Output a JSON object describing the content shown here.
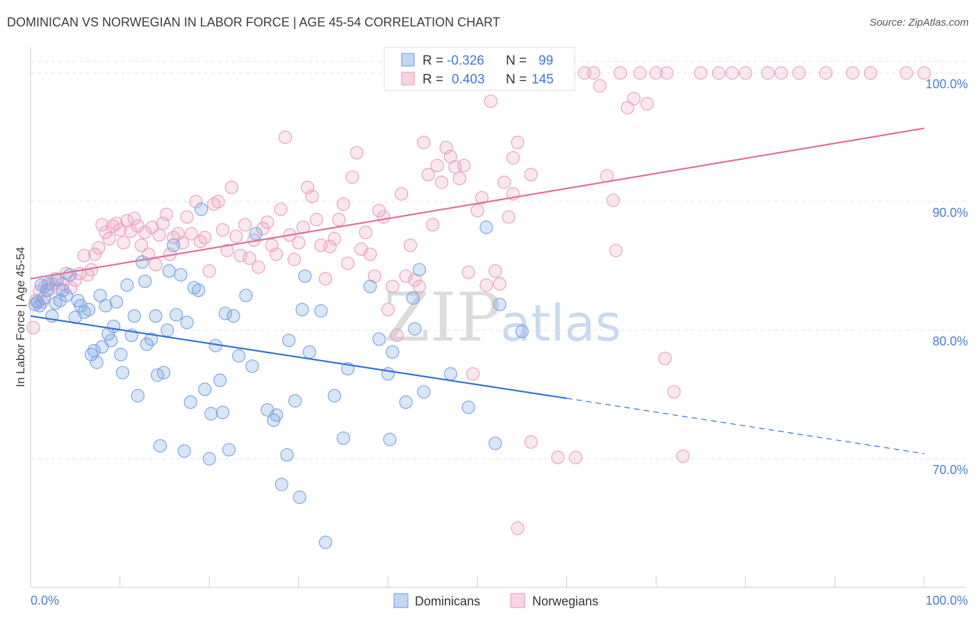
{
  "title": "DOMINICAN VS NORWEGIAN IN LABOR FORCE | AGE 45-54 CORRELATION CHART",
  "source": "Source: ZipAtlas.com",
  "watermark": {
    "zip": "ZIP",
    "atlas": "atlas"
  },
  "colors": {
    "dominicans_fill": "rgba(120,165,230,0.28)",
    "dominicans_stroke": "#7aa6e3",
    "dominicans_line": "#2f72d6",
    "norwegians_fill": "rgba(240,160,190,0.25)",
    "norwegians_stroke": "#eba1bc",
    "norwegians_line": "#e26d98",
    "grid": "#e2e2e2",
    "axis_text": "#4a7fcf"
  },
  "legend_top": {
    "rows": [
      {
        "r_label": "R =",
        "r_value": "-0.326",
        "n_label": "N =",
        "n_value": "99"
      },
      {
        "r_label": "R =",
        "r_value": "0.403",
        "n_label": "N =",
        "n_value": "145"
      }
    ]
  },
  "legend_bottom": [
    "Dominicans",
    "Norwegians"
  ],
  "chart_data": {
    "type": "scatter",
    "title": "DOMINICAN VS NORWEGIAN IN LABOR FORCE | AGE 45-54 CORRELATION CHART",
    "xlabel": "",
    "ylabel": "In Labor Force | Age 45-54",
    "xlim": [
      0,
      100
    ],
    "ylim": [
      60,
      102
    ],
    "x_tick_labels": [
      "0.0%",
      "100.0%"
    ],
    "y_ticks": [
      70,
      80,
      90,
      100
    ],
    "y_tick_labels": [
      "70.0%",
      "80.0%",
      "90.0%",
      "100.0%"
    ],
    "grid": true,
    "legend_position": "top-center",
    "series": [
      {
        "name": "Dominicans",
        "r": -0.326,
        "n": 99,
        "trend": {
          "x0": 0,
          "y0": 81.1,
          "x1": 60,
          "y1": 74.7,
          "dashed_to_x": 100,
          "dashed_to_y": 70.4
        },
        "points": [
          [
            0.5,
            82.0
          ],
          [
            0.8,
            82.2
          ],
          [
            1.0,
            81.9
          ],
          [
            1.2,
            83.5
          ],
          [
            1.5,
            82.5
          ],
          [
            1.8,
            83.1
          ],
          [
            2.0,
            83.6
          ],
          [
            2.4,
            81.1
          ],
          [
            2.8,
            82.1
          ],
          [
            3.0,
            83.9
          ],
          [
            3.3,
            82.3
          ],
          [
            3.6,
            83.1
          ],
          [
            4.0,
            82.7
          ],
          [
            4.4,
            84.3
          ],
          [
            5.0,
            81.0
          ],
          [
            5.3,
            82.3
          ],
          [
            5.6,
            81.9
          ],
          [
            6.0,
            81.4
          ],
          [
            6.5,
            81.6
          ],
          [
            6.8,
            78.1
          ],
          [
            7.1,
            78.4
          ],
          [
            7.4,
            77.5
          ],
          [
            7.8,
            82.7
          ],
          [
            8.0,
            78.7
          ],
          [
            8.4,
            81.9
          ],
          [
            8.7,
            79.7
          ],
          [
            9.0,
            79.2
          ],
          [
            9.3,
            80.3
          ],
          [
            9.6,
            82.2
          ],
          [
            10.1,
            78.1
          ],
          [
            10.3,
            76.7
          ],
          [
            10.8,
            83.5
          ],
          [
            11.3,
            79.6
          ],
          [
            11.6,
            81.1
          ],
          [
            12.0,
            74.9
          ],
          [
            12.5,
            85.3
          ],
          [
            12.8,
            83.8
          ],
          [
            13.0,
            78.9
          ],
          [
            13.5,
            79.3
          ],
          [
            14.0,
            81.1
          ],
          [
            14.2,
            76.5
          ],
          [
            14.5,
            71.0
          ],
          [
            14.9,
            76.7
          ],
          [
            15.3,
            80.0
          ],
          [
            15.5,
            84.6
          ],
          [
            16.0,
            86.6
          ],
          [
            16.3,
            81.2
          ],
          [
            16.8,
            84.3
          ],
          [
            17.2,
            70.6
          ],
          [
            17.5,
            80.6
          ],
          [
            17.9,
            74.4
          ],
          [
            18.3,
            83.3
          ],
          [
            18.8,
            83.1
          ],
          [
            19.1,
            89.4
          ],
          [
            19.5,
            75.4
          ],
          [
            20.0,
            70.0
          ],
          [
            20.2,
            73.5
          ],
          [
            20.7,
            78.8
          ],
          [
            21.2,
            76.1
          ],
          [
            21.5,
            73.6
          ],
          [
            21.8,
            81.3
          ],
          [
            22.2,
            70.7
          ],
          [
            22.7,
            81.1
          ],
          [
            23.3,
            78.0
          ],
          [
            24.1,
            82.7
          ],
          [
            24.8,
            77.2
          ],
          [
            25.2,
            87.5
          ],
          [
            26.5,
            73.8
          ],
          [
            27.2,
            73.0
          ],
          [
            27.5,
            73.4
          ],
          [
            28.1,
            68.0
          ],
          [
            28.7,
            70.3
          ],
          [
            28.9,
            79.2
          ],
          [
            29.6,
            74.5
          ],
          [
            30.1,
            67.0
          ],
          [
            30.4,
            81.6
          ],
          [
            30.7,
            84.2
          ],
          [
            31.2,
            78.3
          ],
          [
            32.5,
            81.5
          ],
          [
            33.0,
            63.5
          ],
          [
            34.0,
            74.9
          ],
          [
            35.0,
            71.6
          ],
          [
            35.5,
            77.0
          ],
          [
            38.0,
            83.4
          ],
          [
            39.0,
            79.3
          ],
          [
            40.0,
            76.6
          ],
          [
            40.2,
            71.5
          ],
          [
            40.5,
            78.3
          ],
          [
            42.0,
            74.4
          ],
          [
            43.0,
            80.1
          ],
          [
            43.5,
            84.7
          ],
          [
            44.0,
            75.2
          ],
          [
            47.0,
            76.6
          ],
          [
            49.0,
            74.0
          ],
          [
            51.0,
            88.0
          ],
          [
            52.0,
            71.2
          ],
          [
            52.5,
            82.0
          ],
          [
            55.0,
            79.9
          ],
          [
            42.8,
            82.5
          ]
        ]
      },
      {
        "name": "Norwegians",
        "r": 0.403,
        "n": 145,
        "trend": {
          "x0": 0,
          "y0": 84.0,
          "x1": 100,
          "y1": 95.7
        },
        "points": [
          [
            0.3,
            80.2
          ],
          [
            0.6,
            82.3
          ],
          [
            1.0,
            83.0
          ],
          [
            1.3,
            82.2
          ],
          [
            1.6,
            83.4
          ],
          [
            2.0,
            83.1
          ],
          [
            2.4,
            83.6
          ],
          [
            2.8,
            84.0
          ],
          [
            3.2,
            83.2
          ],
          [
            3.6,
            83.6
          ],
          [
            4.0,
            84.4
          ],
          [
            4.5,
            83.3
          ],
          [
            5.0,
            83.9
          ],
          [
            5.5,
            84.4
          ],
          [
            6.0,
            85.8
          ],
          [
            6.4,
            84.3
          ],
          [
            6.8,
            84.7
          ],
          [
            7.2,
            85.9
          ],
          [
            7.6,
            86.4
          ],
          [
            8.0,
            88.2
          ],
          [
            8.4,
            87.6
          ],
          [
            8.8,
            87.1
          ],
          [
            9.2,
            88.1
          ],
          [
            9.6,
            88.3
          ],
          [
            10.0,
            87.8
          ],
          [
            10.4,
            86.8
          ],
          [
            10.8,
            88.5
          ],
          [
            11.2,
            87.7
          ],
          [
            11.6,
            88.7
          ],
          [
            12.0,
            88.1
          ],
          [
            12.4,
            86.6
          ],
          [
            12.8,
            87.6
          ],
          [
            13.2,
            85.9
          ],
          [
            13.6,
            88.0
          ],
          [
            14.0,
            85.1
          ],
          [
            14.4,
            87.4
          ],
          [
            14.8,
            88.3
          ],
          [
            15.2,
            89.0
          ],
          [
            15.6,
            85.9
          ],
          [
            16.0,
            87.2
          ],
          [
            16.5,
            87.5
          ],
          [
            17.0,
            86.8
          ],
          [
            17.5,
            88.8
          ],
          [
            18.0,
            87.5
          ],
          [
            18.5,
            90.0
          ],
          [
            19.0,
            86.9
          ],
          [
            19.5,
            87.2
          ],
          [
            20.0,
            84.6
          ],
          [
            20.5,
            89.8
          ],
          [
            21.0,
            90.0
          ],
          [
            21.5,
            87.8
          ],
          [
            22.0,
            86.2
          ],
          [
            22.5,
            91.1
          ],
          [
            23.0,
            87.3
          ],
          [
            23.5,
            85.8
          ],
          [
            24.0,
            88.2
          ],
          [
            24.5,
            85.6
          ],
          [
            25.0,
            87.0
          ],
          [
            25.5,
            84.9
          ],
          [
            26.0,
            87.9
          ],
          [
            26.5,
            88.4
          ],
          [
            27.0,
            86.6
          ],
          [
            27.5,
            85.9
          ],
          [
            28.0,
            89.4
          ],
          [
            28.5,
            95.0
          ],
          [
            29.0,
            87.4
          ],
          [
            29.5,
            85.5
          ],
          [
            30.0,
            86.8
          ],
          [
            30.5,
            88.0
          ],
          [
            31.0,
            91.1
          ],
          [
            31.5,
            90.4
          ],
          [
            32.0,
            88.6
          ],
          [
            32.5,
            86.6
          ],
          [
            33.0,
            84.0
          ],
          [
            33.5,
            86.5
          ],
          [
            34.0,
            87.1
          ],
          [
            34.5,
            88.6
          ],
          [
            35.0,
            89.8
          ],
          [
            35.5,
            85.2
          ],
          [
            36.0,
            91.9
          ],
          [
            36.5,
            93.8
          ],
          [
            37.0,
            86.3
          ],
          [
            37.5,
            87.6
          ],
          [
            38.0,
            85.9
          ],
          [
            38.5,
            84.2
          ],
          [
            39.0,
            89.3
          ],
          [
            39.5,
            88.8
          ],
          [
            40.0,
            81.6
          ],
          [
            40.5,
            83.4
          ],
          [
            41.0,
            79.6
          ],
          [
            41.5,
            90.6
          ],
          [
            42.0,
            84.2
          ],
          [
            42.5,
            86.6
          ],
          [
            43.0,
            83.9
          ],
          [
            43.5,
            83.4
          ],
          [
            44.0,
            94.6
          ],
          [
            44.5,
            92.1
          ],
          [
            45.0,
            88.2
          ],
          [
            45.5,
            92.8
          ],
          [
            46.0,
            91.5
          ],
          [
            46.5,
            94.2
          ],
          [
            47.0,
            93.5
          ],
          [
            47.5,
            92.7
          ],
          [
            48.0,
            91.8
          ],
          [
            48.5,
            92.8
          ],
          [
            49.0,
            84.5
          ],
          [
            49.5,
            76.6
          ],
          [
            50.0,
            89.3
          ],
          [
            50.5,
            90.3
          ],
          [
            51.0,
            83.5
          ],
          [
            51.5,
            97.8
          ],
          [
            52.0,
            84.6
          ],
          [
            52.5,
            83.6
          ],
          [
            53.0,
            91.5
          ],
          [
            53.5,
            88.8
          ],
          [
            54.0,
            90.6
          ],
          [
            54.5,
            94.6
          ],
          [
            55.0,
            99.2
          ],
          [
            56.0,
            92.1
          ],
          [
            57.0,
            99.4
          ],
          [
            58.0,
            99.6
          ],
          [
            59.0,
            70.1
          ],
          [
            60.0,
            100.0
          ],
          [
            61.0,
            70.1
          ],
          [
            62.0,
            100.0
          ],
          [
            63.0,
            100.0
          ],
          [
            63.7,
            99.0
          ],
          [
            64.5,
            92.0
          ],
          [
            65.2,
            90.1
          ],
          [
            66.0,
            100.0
          ],
          [
            66.8,
            97.3
          ],
          [
            67.5,
            98.0
          ],
          [
            68.2,
            100.0
          ],
          [
            69.0,
            97.6
          ],
          [
            70.0,
            100.0
          ],
          [
            71.2,
            100.0
          ],
          [
            72.0,
            75.2
          ],
          [
            73.0,
            70.2
          ],
          [
            75.0,
            100.0
          ],
          [
            77.0,
            100.0
          ],
          [
            78.5,
            100.0
          ],
          [
            80.0,
            100.0
          ],
          [
            82.5,
            100.0
          ],
          [
            84.0,
            100.0
          ],
          [
            86.0,
            100.0
          ],
          [
            89.0,
            100.0
          ],
          [
            92.0,
            100.0
          ],
          [
            94.0,
            100.0
          ],
          [
            98.0,
            100.0
          ],
          [
            100.0,
            100.0
          ],
          [
            65.5,
            86.2
          ],
          [
            54.0,
            93.4
          ],
          [
            71.0,
            77.8
          ],
          [
            54.5,
            64.6
          ],
          [
            56.0,
            71.3
          ]
        ]
      }
    ]
  }
}
